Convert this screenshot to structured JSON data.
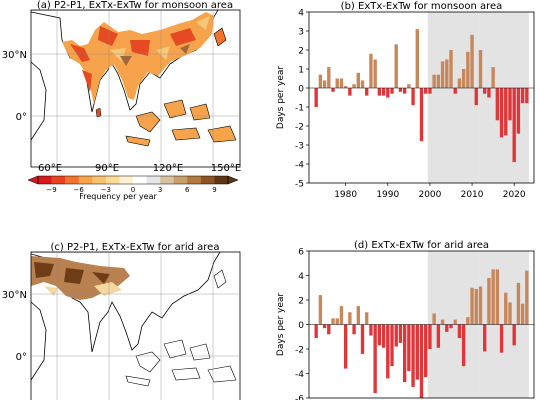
{
  "colors": {
    "positive": "#C8875A",
    "negative": "#E0363A",
    "shade": "#E3E3E3"
  },
  "colorbar": {
    "ticks": [
      "−9",
      "−6",
      "−3",
      "0",
      "3",
      "6",
      "9"
    ],
    "label": "Frequency per year",
    "colors": [
      "#D7191C",
      "#E8431F",
      "#F2722B",
      "#F7A448",
      "#F8C36F",
      "#FBDD99",
      "#FDF2D2",
      "#FFFFFF",
      "#E6E6E6",
      "#D9C2A0",
      "#C99E6A",
      "#B3793F",
      "#8C5424",
      "#5E3412"
    ]
  },
  "maps": [
    {
      "title": "(a) P2-P1, ExTx-ExTw for monsoon area",
      "lat_labels": [
        "30°N",
        "0°"
      ],
      "lon_labels": [
        "60°E",
        "90°E",
        "120°E",
        "150°E"
      ]
    },
    {
      "title": "(c) P2-P1, ExTx-ExTw for arid area",
      "lat_labels": [
        "30°N",
        "0°"
      ]
    }
  ],
  "chart_data": [
    {
      "type": "bar",
      "title": "(b) ExTx-ExTw for monsoon area",
      "ylabel": "Days per year",
      "xlabel": "",
      "xlim": [
        1971.3,
        2024.7
      ],
      "ylim": [
        -5,
        4
      ],
      "yticks": [
        -5,
        -4,
        -3,
        -2,
        -1,
        0,
        1,
        2,
        3,
        4
      ],
      "xticks": [
        1980,
        1990,
        2000,
        2010,
        2020
      ],
      "shaded_periods": [
        [
          2000,
          2011
        ],
        [
          2012,
          2023
        ]
      ],
      "x": [
        1973,
        1974,
        1975,
        1976,
        1977,
        1978,
        1979,
        1980,
        1981,
        1982,
        1983,
        1984,
        1985,
        1986,
        1987,
        1988,
        1989,
        1990,
        1991,
        1992,
        1993,
        1994,
        1995,
        1996,
        1997,
        1998,
        1999,
        2000,
        2001,
        2002,
        2003,
        2004,
        2005,
        2006,
        2007,
        2008,
        2009,
        2010,
        2011,
        2012,
        2013,
        2014,
        2015,
        2016,
        2017,
        2018,
        2019,
        2020,
        2021,
        2022,
        2023
      ],
      "values": [
        -1.0,
        0.7,
        0.4,
        1.1,
        -0.2,
        0.5,
        0.5,
        0.1,
        -0.4,
        0.2,
        0.8,
        0.4,
        -0.4,
        1.8,
        1.5,
        -0.4,
        -0.4,
        -0.5,
        -0.3,
        2.3,
        -0.2,
        -0.3,
        0.2,
        -0.9,
        3.1,
        -2.8,
        -0.3,
        -0.3,
        0.7,
        0.7,
        1.4,
        1.5,
        2.0,
        -0.3,
        0.5,
        1.0,
        1.9,
        2.8,
        -0.9,
        2.0,
        -0.3,
        -0.5,
        1.1,
        -1.7,
        -2.6,
        -2.5,
        -1.7,
        -3.9,
        -2.4,
        -0.8,
        -0.8
      ]
    },
    {
      "type": "bar",
      "title": "(d) ExTx-ExTw for arid area",
      "ylabel": "Days per year",
      "xlabel": "",
      "xlim": [
        1971.3,
        2024.7
      ],
      "ylim": [
        -6,
        6
      ],
      "yticks": [
        -6,
        -4,
        -2,
        0,
        2,
        4,
        6
      ],
      "shaded_periods": [
        [
          2000,
          2011
        ],
        [
          2012,
          2023
        ]
      ],
      "x": [
        1973,
        1974,
        1975,
        1976,
        1977,
        1978,
        1979,
        1980,
        1981,
        1982,
        1983,
        1984,
        1985,
        1986,
        1987,
        1988,
        1989,
        1990,
        1991,
        1992,
        1993,
        1994,
        1995,
        1996,
        1997,
        1998,
        1999,
        2000,
        2001,
        2002,
        2003,
        2004,
        2005,
        2006,
        2007,
        2008,
        2009,
        2010,
        2011,
        2012,
        2013,
        2014,
        2015,
        2016,
        2017,
        2018,
        2019,
        2020,
        2021,
        2022,
        2023
      ],
      "values": [
        -1.1,
        2.4,
        -0.3,
        -0.8,
        0.5,
        0.5,
        1.5,
        -3.6,
        1.0,
        -0.8,
        1.5,
        -2.4,
        1.0,
        -0.9,
        -5.6,
        -1.7,
        -1.9,
        -4.4,
        -3.4,
        -1.8,
        -1.5,
        -4.7,
        -3.8,
        -5.1,
        -4.5,
        -6.2,
        -4.3,
        -2.0,
        0.9,
        -1.9,
        0.4,
        -0.6,
        -0.3,
        0.4,
        -1.1,
        -3.4,
        0.6,
        3.0,
        2.9,
        3.1,
        -2.2,
        3.8,
        4.5,
        4.5,
        -2.3,
        2.6,
        1.8,
        -1.7,
        3.4,
        1.7,
        4.4
      ]
    }
  ]
}
